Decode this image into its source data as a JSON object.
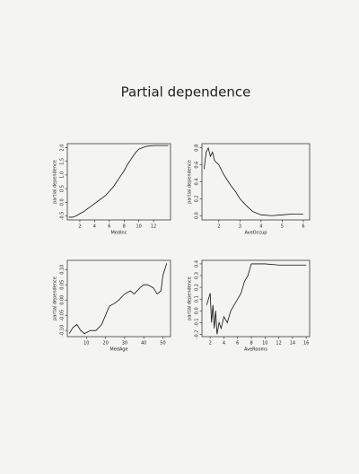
{
  "page": {
    "title": "Partial dependence"
  },
  "chart_data": [
    {
      "type": "line",
      "xlabel": "MedInc",
      "ylabel": "partial dependence",
      "xlim": [
        0.3,
        14.3
      ],
      "ylim": [
        -0.65,
        2.15
      ],
      "xticks": [
        2,
        4,
        6,
        8,
        10,
        12
      ],
      "yticks": [
        -0.5,
        {
          "value": 0,
          "label": "0.0"
        },
        0.5,
        {
          "value": 1,
          "label": "1.0"
        },
        1.5,
        {
          "value": 2,
          "label": "2.0"
        }
      ],
      "series": [
        {
          "color": "#111111",
          "x": [
            0.5,
            1,
            1.5,
            2,
            2.5,
            3,
            3.5,
            4,
            4.5,
            5,
            5.5,
            6,
            6.5,
            7,
            7.5,
            8,
            8.5,
            9,
            9.5,
            10,
            11,
            12,
            13,
            14
          ],
          "values": [
            -0.55,
            -0.55,
            -0.5,
            -0.42,
            -0.35,
            -0.25,
            -0.15,
            -0.05,
            0.05,
            0.15,
            0.25,
            0.4,
            0.55,
            0.75,
            0.95,
            1.15,
            1.4,
            1.6,
            1.8,
            1.95,
            2.05,
            2.08,
            2.08,
            2.08
          ]
        }
      ]
    },
    {
      "type": "line",
      "xlabel": "AveOccup",
      "ylabel": "partial dependence",
      "xlim": [
        1.2,
        6.3
      ],
      "ylim": [
        -0.05,
        0.85
      ],
      "xticks": [
        2,
        3,
        4,
        5,
        6
      ],
      "yticks": [
        {
          "value": 0,
          "label": "0.0"
        },
        0.2,
        0.4,
        0.6,
        0.8
      ],
      "series": [
        {
          "color": "#111111",
          "x": [
            1.3,
            1.4,
            1.5,
            1.6,
            1.7,
            1.8,
            2,
            2.2,
            2.5,
            2.8,
            3,
            3.3,
            3.6,
            4,
            4.5,
            5,
            5.5,
            6
          ],
          "values": [
            0.55,
            0.75,
            0.8,
            0.7,
            0.75,
            0.65,
            0.6,
            0.5,
            0.38,
            0.28,
            0.2,
            0.12,
            0.05,
            0.01,
            0,
            0.01,
            0.02,
            0.02
          ]
        }
      ]
    },
    {
      "type": "line",
      "xlabel": "MedAge",
      "ylabel": "partial dependence",
      "xlim": [
        0,
        54
      ],
      "ylim": [
        -0.12,
        0.13
      ],
      "xticks": [
        10,
        20,
        30,
        40,
        50
      ],
      "yticks": [
        {
          "value": -0.1,
          "label": "-0.10"
        },
        -0.05,
        {
          "value": 0,
          "label": "0.00"
        },
        0.05,
        {
          "value": 0.1,
          "label": "0.10"
        }
      ],
      "series": [
        {
          "color": "#111111",
          "x": [
            1,
            3,
            5,
            7,
            9,
            12,
            15,
            18,
            20,
            22,
            25,
            27,
            30,
            33,
            35,
            38,
            40,
            42,
            45,
            47,
            49,
            50,
            52
          ],
          "values": [
            -0.11,
            -0.09,
            -0.08,
            -0.1,
            -0.11,
            -0.1,
            -0.1,
            -0.08,
            -0.05,
            -0.02,
            -0.01,
            0,
            0.02,
            0.03,
            0.02,
            0.04,
            0.05,
            0.05,
            0.04,
            0.02,
            0.03,
            0.08,
            0.12
          ]
        }
      ]
    },
    {
      "type": "line",
      "xlabel": "AveRooms",
      "ylabel": "partial dependence",
      "xlim": [
        0.8,
        16.5
      ],
      "ylim": [
        -0.22,
        0.43
      ],
      "xticks": [
        2,
        4,
        6,
        8,
        10,
        12,
        14,
        16
      ],
      "yticks": [
        -0.2,
        -0.1,
        {
          "value": 0,
          "label": "0.0"
        },
        0.1,
        0.2,
        0.3,
        0.4
      ],
      "series": [
        {
          "color": "#111111",
          "x": [
            1.5,
            2,
            2.2,
            2.4,
            2.6,
            2.8,
            3,
            3.3,
            3.6,
            4,
            4.5,
            5,
            5.5,
            6,
            6.5,
            7,
            7.5,
            8,
            9,
            10,
            12,
            14,
            16
          ],
          "values": [
            0.05,
            0.15,
            -0.1,
            0.05,
            -0.15,
            0,
            -0.2,
            -0.1,
            -0.15,
            -0.05,
            -0.1,
            0,
            0.05,
            0.1,
            0.15,
            0.25,
            0.3,
            0.4,
            0.4,
            0.4,
            0.39,
            0.39,
            0.39
          ]
        }
      ]
    }
  ]
}
